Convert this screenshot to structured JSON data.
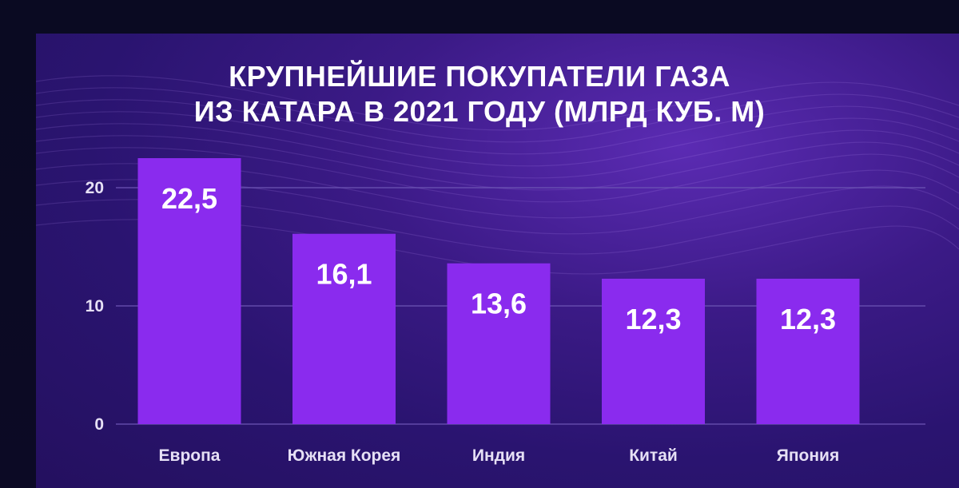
{
  "chart_data": {
    "type": "bar",
    "title_line1": "КРУПНЕЙШИЕ ПОКУПАТЕЛИ ГАЗА",
    "title_line2": "ИЗ КАТАРА В 2021 ГОДУ (МЛРД КУБ. М)",
    "categories": [
      "Европа",
      "Южная Корея",
      "Индия",
      "Китай",
      "Япония"
    ],
    "values": [
      22.5,
      16.1,
      13.6,
      12.3,
      12.3
    ],
    "value_labels": [
      "22,5",
      "16,1",
      "13,6",
      "12,3",
      "12,3"
    ],
    "yticks": [
      0,
      10,
      20
    ],
    "ylim": [
      0,
      22.5
    ],
    "grid": true,
    "colors": {
      "bar": "#8a2bee",
      "gridline": "#6d55b5",
      "text": "#ffffff",
      "tick_text": "#e6e0f5"
    }
  }
}
